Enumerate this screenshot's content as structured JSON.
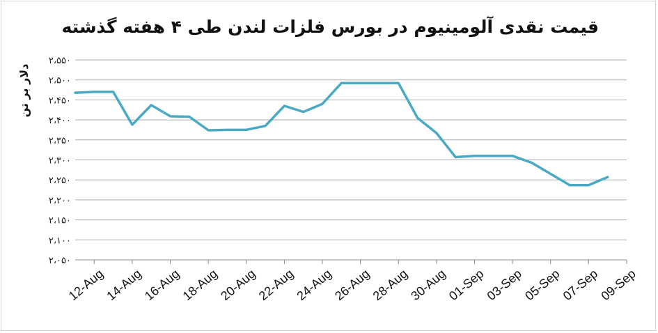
{
  "chart_data": {
    "type": "line",
    "title": "قیمت نقدی آلومینیوم در بورس فلزات لندن طی ۴ هفته گذشته",
    "ylabel": "دلار بر تن",
    "xlabel": "",
    "ylim": [
      2050,
      2550
    ],
    "y_ticks": [
      2050,
      2100,
      2150,
      2200,
      2250,
      2300,
      2350,
      2400,
      2450,
      2500,
      2550
    ],
    "y_tick_labels": [
      "۲،۰۵۰",
      "۲،۱۰۰",
      "۲،۱۵۰",
      "۲،۲۰۰",
      "۲،۲۵۰",
      "۲،۳۰۰",
      "۲،۳۵۰",
      "۲،۴۰۰",
      "۲،۴۵۰",
      "۲،۵۰۰",
      "۲،۵۵۰"
    ],
    "x_tick_labels": [
      "12-Aug",
      "14-Aug",
      "16-Aug",
      "18-Aug",
      "20-Aug",
      "22-Aug",
      "24-Aug",
      "26-Aug",
      "28-Aug",
      "30-Aug",
      "01-Sep",
      "03-Sep",
      "05-Sep",
      "07-Sep",
      "09-Sep"
    ],
    "grid": true,
    "legend": "none",
    "color": "#4aa9c3",
    "series": [
      {
        "x": [
          0,
          1,
          2,
          3,
          4,
          5,
          6,
          7,
          8,
          9,
          10,
          11,
          12,
          13,
          14,
          15,
          16,
          17,
          18,
          19,
          20,
          21,
          22,
          23,
          24,
          25,
          26,
          27,
          28,
          29
        ],
        "values": [
          2468,
          2470,
          2470,
          2388,
          2437,
          2409,
          2408,
          2374,
          2375,
          2375,
          2385,
          2435,
          2420,
          2440,
          2492,
          2492,
          2492,
          2492,
          2405,
          2367,
          2307,
          2310,
          2310,
          2310,
          2293,
          2265,
          2237,
          2237,
          2257,
          null
        ]
      }
    ]
  }
}
